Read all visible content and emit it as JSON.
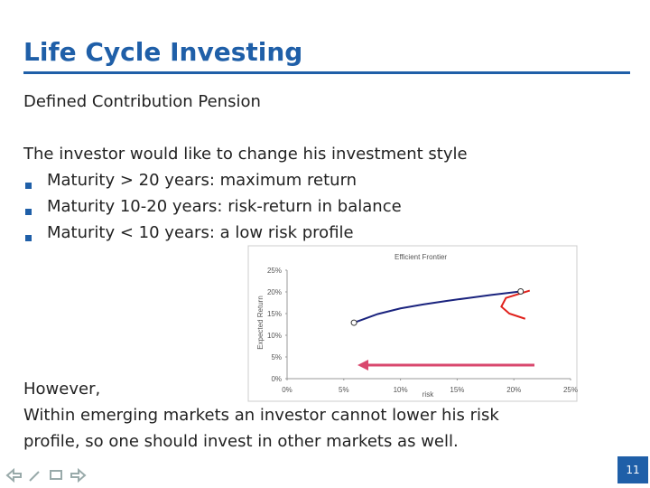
{
  "header": {
    "title": "Life Cycle Investing"
  },
  "subtitle": "Defined Contribution Pension",
  "intro": "The investor would like to change his investment style",
  "bullets": [
    "Maturity > 20 years: maximum return",
    "Maturity 10-20 years: risk-return in balance",
    "Maturity < 10 years: a low risk profile"
  ],
  "chart_data": {
    "type": "line",
    "title": "Efficient Frontier",
    "x_label": "risk",
    "y_label": "Expected Return",
    "xlim": [
      0,
      25
    ],
    "ylim": [
      0,
      25
    ],
    "xticks": [
      {
        "value": 0,
        "label": "0%"
      },
      {
        "value": 5,
        "label": "5%"
      },
      {
        "value": 10,
        "label": "10%"
      },
      {
        "value": 15,
        "label": "15%"
      },
      {
        "value": 20,
        "label": "20%"
      },
      {
        "value": 25,
        "label": "25%"
      }
    ],
    "yticks": [
      {
        "value": 0,
        "label": "0%"
      },
      {
        "value": 5,
        "label": "5%"
      },
      {
        "value": 10,
        "label": "10%"
      },
      {
        "value": 15,
        "label": "15%"
      },
      {
        "value": 20,
        "label": "20%"
      },
      {
        "value": 25,
        "label": "25%"
      }
    ],
    "series": [
      {
        "color": "#1a237e",
        "x": [
          5.9,
          8,
          10,
          12,
          14,
          16,
          18,
          20.6
        ],
        "values": [
          12.9,
          14.9,
          16.2,
          17.1,
          17.9,
          18.6,
          19.3,
          20.1
        ]
      },
      {
        "color": "#e0201b",
        "x": [
          21.4,
          19.3,
          18.9,
          19.6,
          21.0
        ],
        "values": [
          20.3,
          18.6,
          16.6,
          15.0,
          13.8
        ]
      }
    ]
  },
  "closing": [
    "However,",
    "Within emerging markets an investor cannot lower his risk",
    "profile, so one should invest in other markets as well."
  ],
  "page_number": "11"
}
